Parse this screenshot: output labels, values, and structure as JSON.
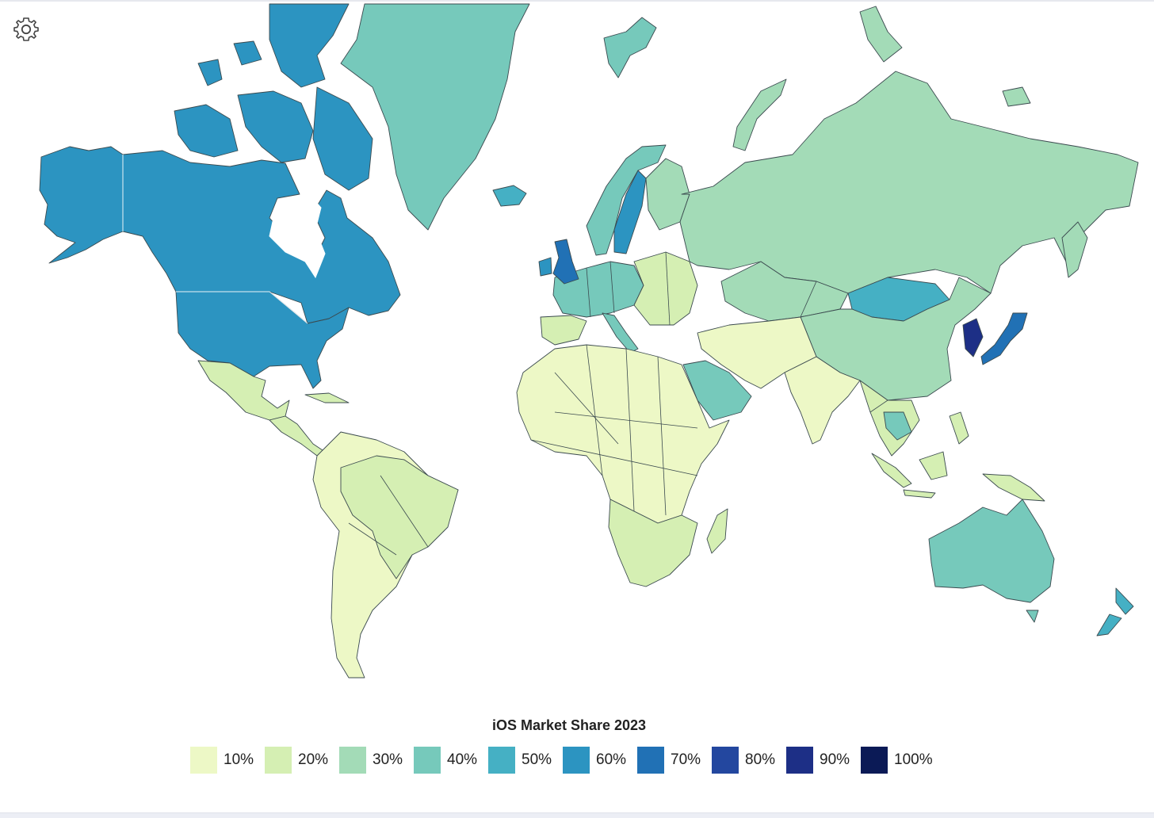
{
  "chart_data": {
    "type": "choropleth",
    "title": "iOS Market Share 2023",
    "legend_placement": "bottom-center",
    "scale": [
      {
        "label": "10%",
        "value": 10,
        "color": "#edf8c6"
      },
      {
        "label": "20%",
        "value": 20,
        "color": "#d5efb3"
      },
      {
        "label": "30%",
        "value": 30,
        "color": "#a3dbb7"
      },
      {
        "label": "40%",
        "value": 40,
        "color": "#76c9bb"
      },
      {
        "label": "50%",
        "value": 50,
        "color": "#45b0c4"
      },
      {
        "label": "60%",
        "value": 60,
        "color": "#2c94c1"
      },
      {
        "label": "70%",
        "value": 70,
        "color": "#2171b5"
      },
      {
        "label": "80%",
        "value": 80,
        "color": "#23479f"
      },
      {
        "label": "90%",
        "value": 90,
        "color": "#1d2f86"
      },
      {
        "label": "100%",
        "value": 100,
        "color": "#0b1a56"
      }
    ],
    "regions": [
      {
        "name": "Canada",
        "value": 60
      },
      {
        "name": "United States",
        "value": 60
      },
      {
        "name": "Alaska",
        "value": 60
      },
      {
        "name": "Greenland",
        "value": 40
      },
      {
        "name": "Iceland",
        "value": 50
      },
      {
        "name": "Mexico",
        "value": 20
      },
      {
        "name": "Central America",
        "value": 20
      },
      {
        "name": "Brazil",
        "value": 20
      },
      {
        "name": "Rest of South America",
        "value": 10
      },
      {
        "name": "United Kingdom",
        "value": 70
      },
      {
        "name": "Ireland",
        "value": 60
      },
      {
        "name": "Norway",
        "value": 40
      },
      {
        "name": "Sweden",
        "value": 60
      },
      {
        "name": "Finland",
        "value": 30
      },
      {
        "name": "Western Europe",
        "value": 40
      },
      {
        "name": "Eastern Europe",
        "value": 20
      },
      {
        "name": "Russia",
        "value": 30
      },
      {
        "name": "Kazakhstan & Central Asia",
        "value": 30
      },
      {
        "name": "Mongolia",
        "value": 50
      },
      {
        "name": "China",
        "value": 30
      },
      {
        "name": "Korea",
        "value": 90
      },
      {
        "name": "Japan",
        "value": 70
      },
      {
        "name": "Saudi Arabia",
        "value": 40
      },
      {
        "name": "Middle East",
        "value": 10
      },
      {
        "name": "India",
        "value": 10
      },
      {
        "name": "Southeast Asia",
        "value": 20
      },
      {
        "name": "Thailand & Cambodia",
        "value": 40
      },
      {
        "name": "Indonesia",
        "value": 20
      },
      {
        "name": "Africa",
        "value": 10
      },
      {
        "name": "Southern Africa",
        "value": 20
      },
      {
        "name": "Madagascar",
        "value": 20
      },
      {
        "name": "Australia",
        "value": 40
      },
      {
        "name": "New Zealand",
        "value": 50
      }
    ]
  }
}
